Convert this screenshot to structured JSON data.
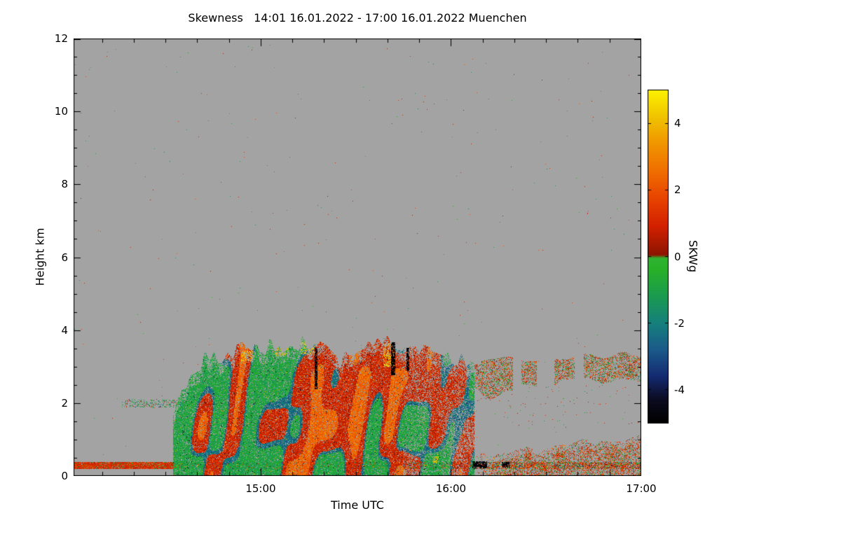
{
  "figure": {
    "bg": "#ffffff",
    "plot_bg": "#a3a3a3"
  },
  "chart_data": {
    "type": "heatmap",
    "title": "Skewness   14:01 16.01.2022 - 17:00 16.01.2022 Muenchen",
    "xlabel": "Time UTC",
    "ylabel": "Height km",
    "x_start_label": "14:01",
    "x_range_minutes": [
      0,
      179
    ],
    "x_ticks": [
      {
        "label": "15:00",
        "minute": 59
      },
      {
        "label": "16:00",
        "minute": 119
      },
      {
        "label": "17:00",
        "minute": 179
      }
    ],
    "x_minor_step_minutes": 10,
    "y_ticks": [
      0,
      2,
      4,
      6,
      8,
      10,
      12
    ],
    "y_minor_step_km": 0.5,
    "ylim": [
      0,
      12
    ],
    "colorbar": {
      "label": "SKWg",
      "ticks": [
        4,
        2,
        0,
        -2,
        -4
      ],
      "range": [
        -5,
        5
      ],
      "stops": [
        [
          -5.0,
          "#000000"
        ],
        [
          -4.3,
          "#0b0b20"
        ],
        [
          -3.6,
          "#142a70"
        ],
        [
          -2.8,
          "#1b5a8a"
        ],
        [
          -2.0,
          "#15807c"
        ],
        [
          -1.2,
          "#1a9a50"
        ],
        [
          -0.4,
          "#28b028"
        ],
        [
          -0.05,
          "#30b430"
        ],
        [
          0.05,
          "#8c1400"
        ],
        [
          0.9,
          "#d22000"
        ],
        [
          1.8,
          "#e84600"
        ],
        [
          2.6,
          "#f07000"
        ],
        [
          3.4,
          "#f09600"
        ],
        [
          4.2,
          "#f0c400"
        ],
        [
          5.0,
          "#fdf200"
        ]
      ]
    },
    "texture": {
      "seed": 1337,
      "background_speckle_density": 0.0006,
      "storm": {
        "t0": 0.175,
        "t1": 0.705,
        "density": 0.88,
        "top_profile": [
          [
            0.175,
            1.5
          ],
          [
            0.19,
            2.5
          ],
          [
            0.21,
            2.9
          ],
          [
            0.235,
            3.25
          ],
          [
            0.26,
            3.0
          ],
          [
            0.285,
            3.4
          ],
          [
            0.305,
            3.55
          ],
          [
            0.325,
            3.35
          ],
          [
            0.345,
            3.6
          ],
          [
            0.365,
            3.45
          ],
          [
            0.385,
            3.75
          ],
          [
            0.405,
            3.55
          ],
          [
            0.425,
            3.8
          ],
          [
            0.445,
            3.35
          ],
          [
            0.465,
            3.15
          ],
          [
            0.49,
            3.3
          ],
          [
            0.515,
            3.45
          ],
          [
            0.54,
            3.65
          ],
          [
            0.555,
            3.75
          ],
          [
            0.575,
            3.55
          ],
          [
            0.6,
            3.45
          ],
          [
            0.625,
            3.3
          ],
          [
            0.65,
            3.4
          ],
          [
            0.675,
            3.25
          ],
          [
            0.705,
            3.2
          ]
        ]
      },
      "anvil": {
        "t0": 0.705,
        "t1": 1.0,
        "h_base": 2.55,
        "h_top": 3.25,
        "density": 0.5
      },
      "low_band": {
        "t0": 0.705,
        "t1": 1.0,
        "h_top_start": 0.45,
        "h_top_end": 1.15,
        "density": 0.62
      },
      "ground_band": {
        "h0": 0.22,
        "h1": 0.38,
        "red_until_t": 0.195,
        "density_red": 0.95,
        "density_mix": 0.5
      },
      "left_dots": {
        "t0": 0.085,
        "t1": 0.19,
        "h0": 1.88,
        "h1": 2.1,
        "count": 260
      },
      "black_streaks": [
        [
          0.427,
          2.4,
          3.5,
          3
        ],
        [
          0.562,
          2.8,
          3.65,
          5
        ],
        [
          0.588,
          2.9,
          3.5,
          3
        ],
        [
          0.715,
          0.24,
          0.4,
          20
        ],
        [
          0.76,
          0.26,
          0.38,
          10
        ]
      ],
      "yellow_patches": [
        [
          0.295,
          0.315,
          3.15,
          3.45
        ],
        [
          0.355,
          0.378,
          3.3,
          3.65
        ],
        [
          0.4,
          0.425,
          3.35,
          3.7
        ],
        [
          0.545,
          0.565,
          3.0,
          3.65
        ],
        [
          0.632,
          0.642,
          0.35,
          0.55
        ]
      ]
    }
  }
}
